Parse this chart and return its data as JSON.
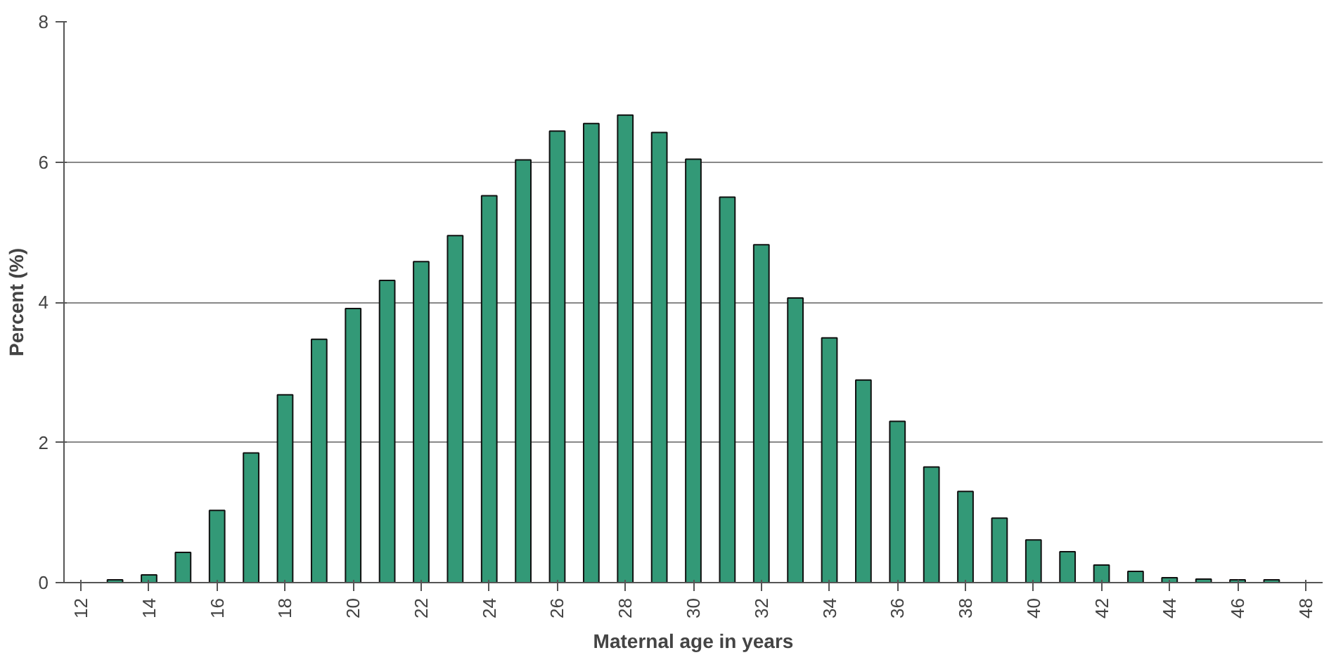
{
  "chart_data": {
    "type": "bar",
    "xlabel": "Maternal age in years",
    "ylabel": "Percent (%)",
    "categories": [
      "12",
      null,
      "14",
      null,
      "16",
      null,
      "18",
      null,
      "20",
      null,
      "22",
      null,
      "24",
      null,
      "26",
      null,
      "28",
      null,
      "30",
      null,
      "32",
      null,
      "34",
      null,
      "36",
      null,
      "38",
      null,
      "40",
      null,
      "42",
      null,
      "44",
      null,
      "46",
      null,
      "48"
    ],
    "values": [
      null,
      0.04,
      0.11,
      0.43,
      1.03,
      1.85,
      2.68,
      3.47,
      3.91,
      4.31,
      4.58,
      4.95,
      5.52,
      6.03,
      6.44,
      6.55,
      6.67,
      6.42,
      6.04,
      5.5,
      4.82,
      4.06,
      3.49,
      2.89,
      2.3,
      1.65,
      1.3,
      0.92,
      0.61,
      0.44,
      0.25,
      0.16,
      0.07,
      0.05,
      0.04,
      0.04,
      null
    ],
    "color": "#339977",
    "ylim": [
      0,
      8
    ],
    "yticks": [
      0,
      2,
      4,
      6,
      8
    ],
    "grid": "y"
  }
}
